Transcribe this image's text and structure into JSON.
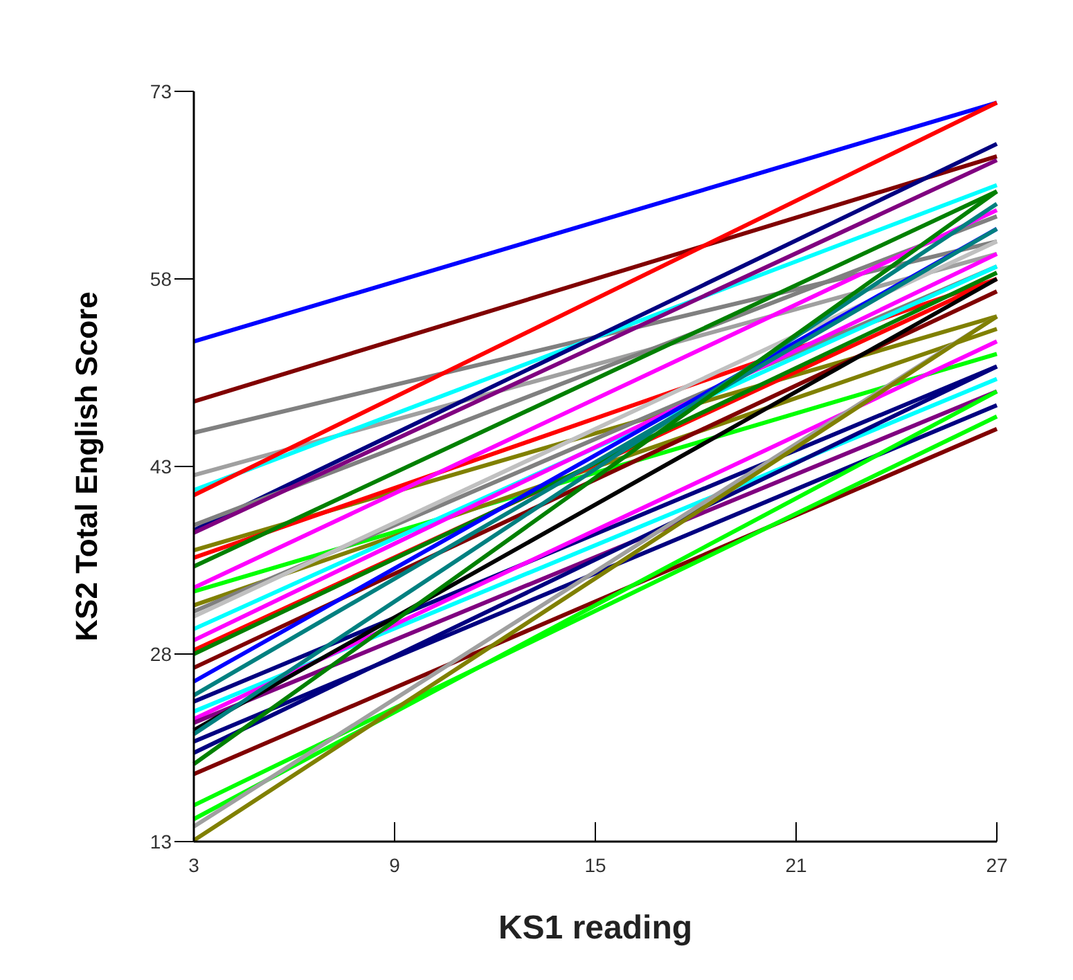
{
  "chart_data": {
    "type": "line",
    "xlabel": "KS1 reading",
    "ylabel": "KS2 Total English Score",
    "x": [
      3,
      27
    ],
    "xlim": [
      3,
      27
    ],
    "ylim": [
      13,
      73
    ],
    "xticks": [
      3,
      9,
      15,
      21,
      27
    ],
    "yticks": [
      13,
      28,
      43,
      58,
      73
    ],
    "marker": "none",
    "line_style": "solid",
    "series": [
      {
        "color": "#0000ff",
        "values": [
          53.0,
          72.1
        ]
      },
      {
        "color": "#800000",
        "values": [
          48.2,
          67.8
        ]
      },
      {
        "color": "#808080",
        "values": [
          45.7,
          61
        ]
      },
      {
        "color": "#a0a0a0",
        "values": [
          42.3,
          60
        ]
      },
      {
        "color": "#00ffff",
        "values": [
          41.1,
          65.5
        ]
      },
      {
        "color": "#ff0000",
        "values": [
          40.7,
          72.1
        ]
      },
      {
        "color": "#000080",
        "values": [
          37.9,
          68.8
        ]
      },
      {
        "color": "#808080",
        "values": [
          38.3,
          63
        ]
      },
      {
        "color": "#800080",
        "values": [
          37.7,
          67.5
        ]
      },
      {
        "color": "#808000",
        "values": [
          36.3,
          55
        ]
      },
      {
        "color": "#ff0000",
        "values": [
          35.7,
          58
        ]
      },
      {
        "color": "#008000",
        "values": [
          35,
          65
        ]
      },
      {
        "color": "#ff00ff",
        "values": [
          33.3,
          63.5
        ]
      },
      {
        "color": "#00ff00",
        "values": [
          33,
          52
        ]
      },
      {
        "color": "#808000",
        "values": [
          31.9,
          54
        ]
      },
      {
        "color": "#808080",
        "values": [
          31.4,
          59
        ]
      },
      {
        "color": "#c0c0c0",
        "values": [
          31,
          61
        ]
      },
      {
        "color": "#00ffff",
        "values": [
          30,
          59
        ]
      },
      {
        "color": "#ff00ff",
        "values": [
          29.1,
          60
        ]
      },
      {
        "color": "#ff0000",
        "values": [
          28.3,
          58
        ]
      },
      {
        "color": "#008000",
        "values": [
          28,
          58.5
        ]
      },
      {
        "color": "#800000",
        "values": [
          26.9,
          57
        ]
      },
      {
        "color": "#0000ff",
        "values": [
          25.8,
          62
        ]
      },
      {
        "color": "#008080",
        "values": [
          24.7,
          62
        ]
      },
      {
        "color": "#000080",
        "values": [
          24.2,
          51
        ]
      },
      {
        "color": "#00ffff",
        "values": [
          23.4,
          50
        ]
      },
      {
        "color": "#ff00ff",
        "values": [
          22.8,
          53
        ]
      },
      {
        "color": "#800080",
        "values": [
          22.5,
          49
        ]
      },
      {
        "color": "#000000",
        "values": [
          21.9,
          58
        ]
      },
      {
        "color": "#008080",
        "values": [
          21.6,
          64
        ]
      },
      {
        "color": "#000080",
        "values": [
          21,
          47.9
        ]
      },
      {
        "color": "#000080",
        "values": [
          20.1,
          51
        ]
      },
      {
        "color": "#008000",
        "values": [
          19.2,
          65
        ]
      },
      {
        "color": "#800000",
        "values": [
          18.4,
          46
        ]
      },
      {
        "color": "#00ff00",
        "values": [
          15.9,
          47
        ]
      },
      {
        "color": "#00ff00",
        "values": [
          14.8,
          49
        ]
      },
      {
        "color": "#a0a0a0",
        "values": [
          14.2,
          55
        ]
      },
      {
        "color": "#808000",
        "values": [
          13.1,
          55
        ]
      }
    ]
  }
}
